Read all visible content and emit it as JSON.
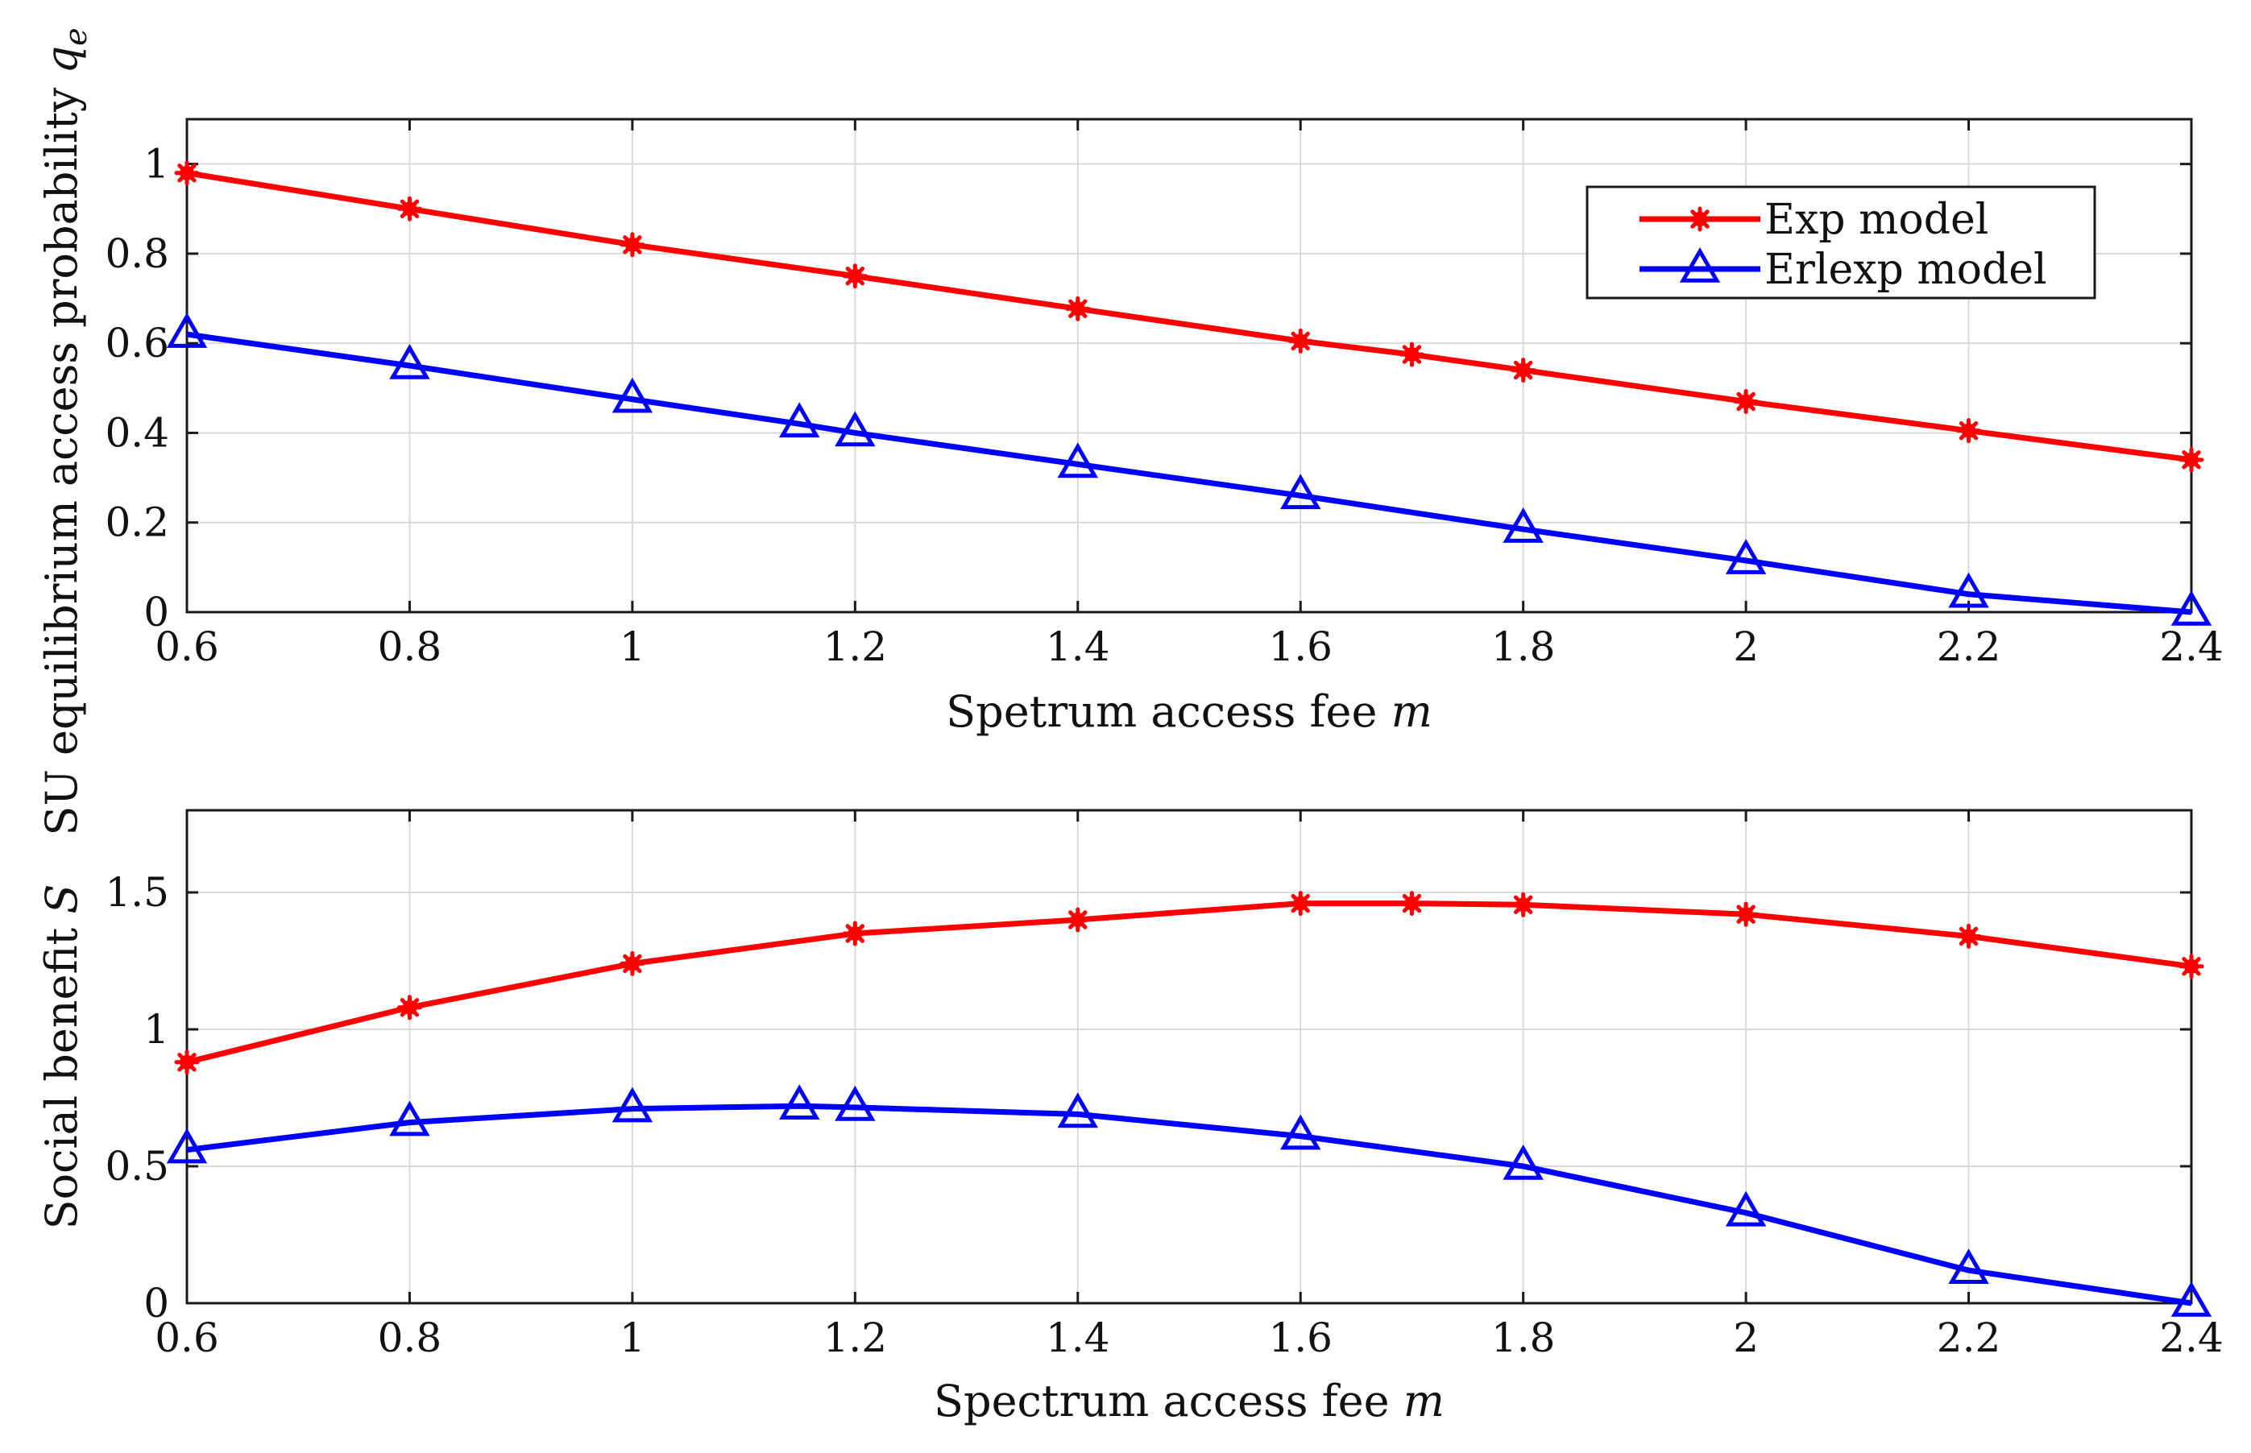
{
  "colors": {
    "exp": "#ff0000",
    "erlexp": "#0000ff",
    "grid": "#d9d9d9",
    "axis": "#1a1a1a"
  },
  "legend": {
    "items": [
      "Exp model",
      "Erlexp model"
    ],
    "location": "top-right of upper chart"
  },
  "chart_data": [
    {
      "type": "line",
      "ylabel_text": "SU equilibrium access probability ",
      "ylabel_symbol": "q",
      "ylabel_subscript": "e",
      "xlabel_text": "Spetrum access fee ",
      "xlabel_symbol": "m",
      "xlim": [
        0.6,
        2.4
      ],
      "ylim": [
        0,
        1.1
      ],
      "grid": true,
      "xticks": [
        0.6,
        0.8,
        1,
        1.2,
        1.4,
        1.6,
        1.8,
        2,
        2.2,
        2.4
      ],
      "xtick_labels": [
        "0.6",
        "0.8",
        "1",
        "1.2",
        "1.4",
        "1.6",
        "1.8",
        "2",
        "2.2",
        "2.4"
      ],
      "yticks": [
        0,
        0.2,
        0.4,
        0.6,
        0.8,
        1
      ],
      "ytick_labels": [
        "0",
        "0.2",
        "0.4",
        "0.6",
        "0.8",
        "1"
      ],
      "series": [
        {
          "name": "Exp model",
          "color": "#ff0000",
          "marker": "asterisk",
          "x": [
            0.6,
            0.8,
            1.0,
            1.2,
            1.4,
            1.6,
            1.7,
            1.8,
            2.0,
            2.2,
            2.4
          ],
          "y": [
            0.98,
            0.9,
            0.82,
            0.75,
            0.677,
            0.605,
            0.575,
            0.54,
            0.47,
            0.405,
            0.34
          ]
        },
        {
          "name": "Erlexp model",
          "color": "#0000ff",
          "marker": "triangle",
          "x": [
            0.6,
            0.8,
            1.0,
            1.15,
            1.2,
            1.4,
            1.6,
            1.8,
            2.0,
            2.2,
            2.4
          ],
          "y": [
            0.62,
            0.55,
            0.475,
            0.42,
            0.4,
            0.33,
            0.26,
            0.185,
            0.115,
            0.04,
            0.0
          ]
        }
      ]
    },
    {
      "type": "line",
      "ylabel_text": "Social benefit ",
      "ylabel_symbol": "S",
      "ylabel_subscript": "",
      "xlabel_text": "Spectrum access fee ",
      "xlabel_symbol": "m",
      "xlim": [
        0.6,
        2.4
      ],
      "ylim": [
        0,
        1.8
      ],
      "grid": true,
      "xticks": [
        0.6,
        0.8,
        1,
        1.2,
        1.4,
        1.6,
        1.8,
        2,
        2.2,
        2.4
      ],
      "xtick_labels": [
        "0.6",
        "0.8",
        "1",
        "1.2",
        "1.4",
        "1.6",
        "1.8",
        "2",
        "2.2",
        "2.4"
      ],
      "yticks": [
        0,
        0.5,
        1,
        1.5
      ],
      "ytick_labels": [
        "0",
        "0.5",
        "1",
        "1.5"
      ],
      "series": [
        {
          "name": "Exp model",
          "color": "#ff0000",
          "marker": "asterisk",
          "x": [
            0.6,
            0.8,
            1.0,
            1.2,
            1.4,
            1.6,
            1.7,
            1.8,
            2.0,
            2.2,
            2.4
          ],
          "y": [
            0.88,
            1.08,
            1.24,
            1.35,
            1.4,
            1.46,
            1.46,
            1.455,
            1.42,
            1.34,
            1.23
          ]
        },
        {
          "name": "Erlexp model",
          "color": "#0000ff",
          "marker": "triangle",
          "x": [
            0.6,
            0.8,
            1.0,
            1.15,
            1.2,
            1.4,
            1.6,
            1.8,
            2.0,
            2.2,
            2.4
          ],
          "y": [
            0.56,
            0.66,
            0.71,
            0.72,
            0.715,
            0.69,
            0.61,
            0.5,
            0.33,
            0.12,
            0.0
          ]
        }
      ]
    }
  ]
}
